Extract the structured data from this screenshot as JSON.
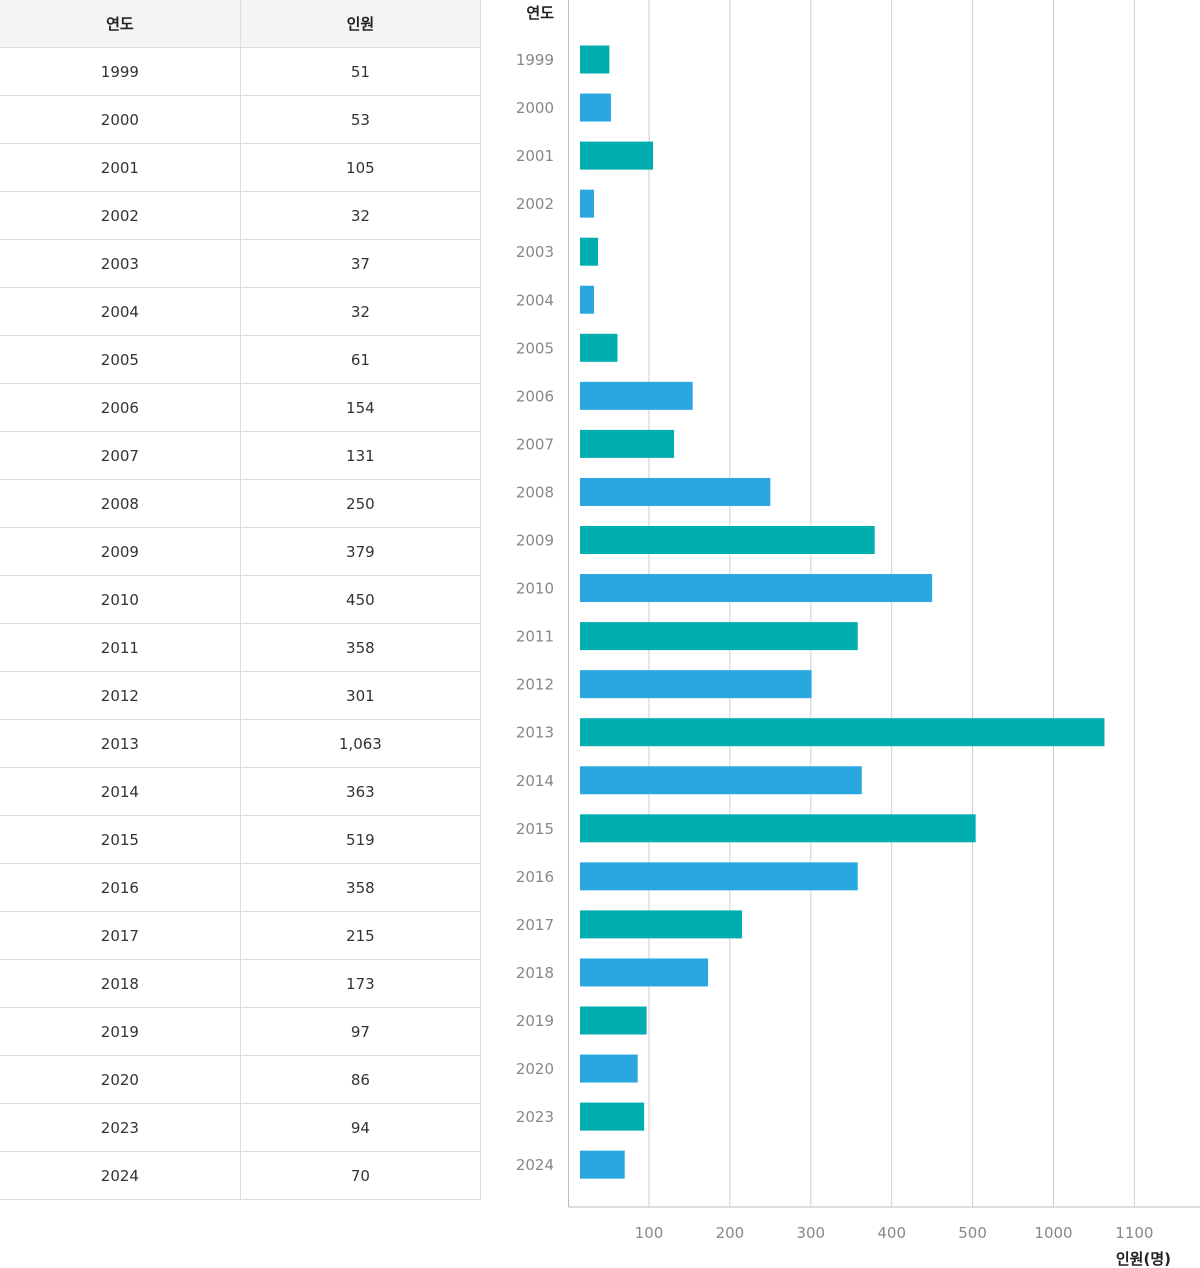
{
  "table": {
    "headers": [
      "연도",
      "인원"
    ],
    "rows": [
      [
        "1999",
        "51"
      ],
      [
        "2000",
        "53"
      ],
      [
        "2001",
        "105"
      ],
      [
        "2002",
        "32"
      ],
      [
        "2003",
        "37"
      ],
      [
        "2004",
        "32"
      ],
      [
        "2005",
        "61"
      ],
      [
        "2006",
        "154"
      ],
      [
        "2007",
        "131"
      ],
      [
        "2008",
        "250"
      ],
      [
        "2009",
        "379"
      ],
      [
        "2010",
        "450"
      ],
      [
        "2011",
        "358"
      ],
      [
        "2012",
        "301"
      ],
      [
        "2013",
        "1,063"
      ],
      [
        "2014",
        "363"
      ],
      [
        "2015",
        "519"
      ],
      [
        "2016",
        "358"
      ],
      [
        "2017",
        "215"
      ],
      [
        "2018",
        "173"
      ],
      [
        "2019",
        "97"
      ],
      [
        "2020",
        "86"
      ],
      [
        "2023",
        "94"
      ],
      [
        "2024",
        "70"
      ]
    ]
  },
  "chart_data": {
    "type": "bar",
    "orientation": "horizontal",
    "category_axis_title": "연도",
    "value_axis_title": "인원(명)",
    "categories": [
      "1999",
      "2000",
      "2001",
      "2002",
      "2003",
      "2004",
      "2005",
      "2006",
      "2007",
      "2008",
      "2009",
      "2010",
      "2011",
      "2012",
      "2013",
      "2014",
      "2015",
      "2016",
      "2017",
      "2018",
      "2019",
      "2020",
      "2023",
      "2024"
    ],
    "values": [
      51,
      53,
      105,
      32,
      37,
      32,
      61,
      154,
      131,
      250,
      379,
      450,
      358,
      301,
      1063,
      363,
      519,
      358,
      215,
      173,
      97,
      86,
      94,
      70
    ],
    "x_ticks": [
      "100",
      "200",
      "300",
      "400",
      "500",
      "1000",
      "1100"
    ],
    "grid": "vertical",
    "bar_colors": [
      "#00aeb0",
      "#29a8e0"
    ]
  }
}
